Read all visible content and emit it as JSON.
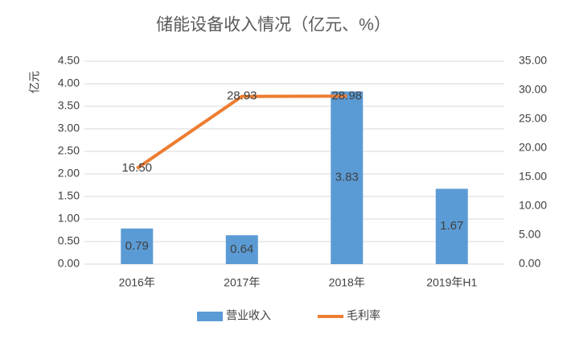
{
  "chart_data": {
    "type": "bar-line",
    "title": "储能设备收入情况（亿元、%）",
    "ylabel": "亿元",
    "categories": [
      "2016年",
      "2017年",
      "2018年",
      "2019年H1"
    ],
    "series": [
      {
        "name": "营业收入",
        "type": "bar",
        "color": "#5b9bd5",
        "values": [
          0.79,
          0.64,
          3.83,
          1.67
        ]
      },
      {
        "name": "毛利率",
        "type": "line",
        "axis": "y2",
        "color": "#ed7d31",
        "values": [
          16.5,
          28.93,
          28.98,
          null
        ],
        "value_labels": [
          "16.50",
          "28.93",
          "28.98",
          null
        ]
      }
    ],
    "ylim": [
      0,
      4.5
    ],
    "yticks": [
      {
        "value": 0,
        "label": "0.00"
      },
      {
        "value": 0.5,
        "label": "0.50"
      },
      {
        "value": 1,
        "label": "1.00"
      },
      {
        "value": 1.5,
        "label": "1.50"
      },
      {
        "value": 2,
        "label": "2.00"
      },
      {
        "value": 2.5,
        "label": "2.50"
      },
      {
        "value": 3,
        "label": "3.00"
      },
      {
        "value": 3.5,
        "label": "3.50"
      },
      {
        "value": 4,
        "label": "4.00"
      },
      {
        "value": 4.5,
        "label": "4.50"
      }
    ],
    "y2lim": [
      0,
      35
    ],
    "y2ticks": [
      {
        "value": 0,
        "label": "0.00"
      },
      {
        "value": 5,
        "label": "5.00"
      },
      {
        "value": 10,
        "label": "10.00"
      },
      {
        "value": 15,
        "label": "15.00"
      },
      {
        "value": 20,
        "label": "20.00"
      },
      {
        "value": 25,
        "label": "25.00"
      },
      {
        "value": 30,
        "label": "30.00"
      },
      {
        "value": 35,
        "label": "35.00"
      }
    ],
    "grid": true,
    "legend": "bottom"
  }
}
